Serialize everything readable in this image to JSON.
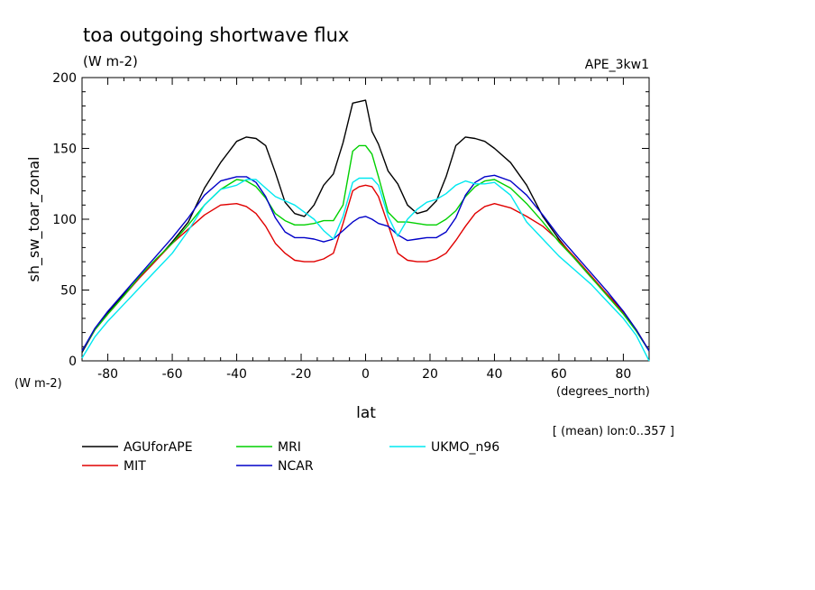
{
  "chart_data": {
    "type": "line",
    "title": "toa outgoing shortwave flux",
    "subtitle": "(W m-2)",
    "run_label": "APE_3kw1",
    "ylabel": "sh_sw_toar_zonal",
    "yunits": "(W m-2)",
    "xlabel": "lat",
    "xunits": "(degrees_north)",
    "footnote": "[ (mean) lon:0..357 ]",
    "xlim": [
      -88,
      88
    ],
    "ylim": [
      0,
      200
    ],
    "xticks": [
      "-80",
      "-60",
      "-40",
      "-20",
      "0",
      "20",
      "40",
      "60",
      "80"
    ],
    "yticks": [
      "0",
      "50",
      "100",
      "150",
      "200"
    ],
    "grid": false,
    "legend_position": "bottom",
    "series": [
      {
        "name": "AGUforAPE",
        "color": "#000000",
        "x": [
          -88,
          -84,
          -80,
          -75,
          -70,
          -65,
          -60,
          -55,
          -50,
          -45,
          -40,
          -37,
          -34,
          -31,
          -28,
          -25,
          -22,
          -19,
          -16,
          -13,
          -10,
          -7,
          -4,
          -2,
          0,
          2,
          4,
          7,
          10,
          13,
          16,
          19,
          22,
          25,
          28,
          31,
          34,
          37,
          40,
          45,
          50,
          55,
          60,
          65,
          70,
          75,
          80,
          84,
          88
        ],
        "y": [
          6,
          22,
          34,
          47,
          59,
          71,
          84,
          98,
          122,
          140,
          155,
          158,
          157,
          152,
          133,
          112,
          104,
          102,
          110,
          124,
          132,
          154,
          182,
          183,
          184,
          162,
          153,
          134,
          125,
          110,
          104,
          106,
          113,
          130,
          152,
          158,
          157,
          155,
          150,
          140,
          124,
          102,
          86,
          72,
          59,
          47,
          35,
          22,
          7
        ]
      },
      {
        "name": "MIT",
        "color": "#e00000",
        "x": [
          -88,
          -84,
          -80,
          -75,
          -70,
          -65,
          -60,
          -55,
          -50,
          -45,
          -40,
          -37,
          -34,
          -31,
          -28,
          -25,
          -22,
          -19,
          -16,
          -13,
          -10,
          -7,
          -4,
          -2,
          0,
          2,
          4,
          7,
          10,
          13,
          16,
          19,
          22,
          25,
          28,
          31,
          34,
          37,
          40,
          45,
          50,
          55,
          60,
          65,
          70,
          75,
          80,
          84,
          88
        ],
        "y": [
          7,
          22,
          33,
          46,
          59,
          71,
          83,
          93,
          103,
          110,
          111,
          109,
          104,
          95,
          83,
          76,
          71,
          70,
          70,
          72,
          76,
          97,
          120,
          123,
          124,
          123,
          116,
          96,
          76,
          71,
          70,
          70,
          72,
          76,
          85,
          95,
          104,
          109,
          111,
          108,
          102,
          95,
          85,
          73,
          60,
          47,
          34,
          22,
          7
        ]
      },
      {
        "name": "MRI",
        "color": "#00d000",
        "x": [
          -88,
          -84,
          -80,
          -75,
          -70,
          -65,
          -60,
          -55,
          -50,
          -45,
          -40,
          -37,
          -34,
          -31,
          -28,
          -25,
          -22,
          -19,
          -16,
          -13,
          -10,
          -7,
          -4,
          -2,
          0,
          2,
          4,
          7,
          10,
          13,
          16,
          19,
          22,
          25,
          28,
          31,
          34,
          37,
          40,
          45,
          50,
          55,
          60,
          65,
          70,
          75,
          80,
          84,
          88
        ],
        "y": [
          7,
          22,
          33,
          46,
          60,
          72,
          83,
          96,
          110,
          121,
          128,
          127,
          123,
          115,
          104,
          99,
          96,
          96,
          97,
          99,
          99,
          110,
          148,
          152,
          152,
          146,
          130,
          105,
          98,
          98,
          97,
          96,
          96,
          100,
          106,
          116,
          123,
          127,
          128,
          122,
          111,
          98,
          84,
          72,
          59,
          46,
          33,
          21,
          7
        ]
      },
      {
        "name": "NCAR",
        "color": "#0000c8",
        "x": [
          -88,
          -84,
          -80,
          -75,
          -70,
          -65,
          -60,
          -55,
          -50,
          -45,
          -40,
          -37,
          -34,
          -31,
          -28,
          -25,
          -22,
          -19,
          -16,
          -13,
          -10,
          -7,
          -4,
          -2,
          0,
          2,
          4,
          7,
          10,
          13,
          16,
          19,
          22,
          25,
          28,
          31,
          34,
          37,
          40,
          45,
          50,
          55,
          60,
          65,
          70,
          75,
          80,
          84,
          88
        ],
        "y": [
          7,
          23,
          35,
          48,
          61,
          74,
          87,
          101,
          117,
          127,
          130,
          130,
          126,
          116,
          101,
          91,
          87,
          87,
          86,
          84,
          86,
          92,
          98,
          101,
          102,
          100,
          97,
          95,
          89,
          85,
          86,
          87,
          87,
          91,
          101,
          117,
          126,
          130,
          131,
          127,
          117,
          103,
          88,
          75,
          62,
          49,
          35,
          22,
          7
        ]
      },
      {
        "name": "UKMO_n96",
        "color": "#00e8f0",
        "x": [
          -88,
          -84,
          -80,
          -75,
          -70,
          -65,
          -60,
          -55,
          -50,
          -45,
          -40,
          -37,
          -34,
          -31,
          -28,
          -25,
          -22,
          -19,
          -16,
          -13,
          -10,
          -7,
          -4,
          -2,
          0,
          2,
          4,
          7,
          10,
          13,
          16,
          19,
          22,
          25,
          28,
          31,
          34,
          37,
          40,
          45,
          50,
          55,
          60,
          65,
          70,
          75,
          80,
          84,
          88
        ],
        "y": [
          2,
          17,
          28,
          40,
          52,
          64,
          76,
          92,
          110,
          121,
          124,
          128,
          128,
          122,
          116,
          113,
          110,
          105,
          100,
          92,
          86,
          102,
          126,
          129,
          129,
          129,
          124,
          102,
          88,
          100,
          107,
          112,
          114,
          118,
          124,
          127,
          125,
          125,
          126,
          117,
          98,
          86,
          74,
          64,
          54,
          42,
          30,
          18,
          0
        ]
      }
    ]
  }
}
